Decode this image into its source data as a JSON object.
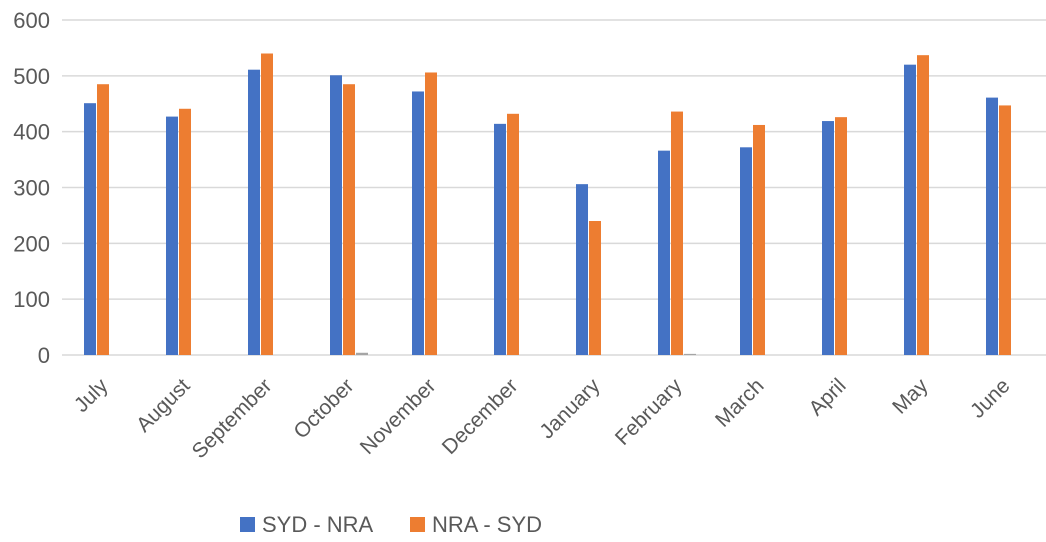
{
  "chart_data": {
    "type": "bar",
    "title": "",
    "xlabel": "",
    "ylabel": "",
    "ylim": [
      0,
      600
    ],
    "yticks": [
      0,
      100,
      200,
      300,
      400,
      500,
      600
    ],
    "grid": true,
    "legend_position": "bottom",
    "categories": [
      "July",
      "August",
      "September",
      "October",
      "November",
      "December",
      "January",
      "February",
      "March",
      "April",
      "May",
      "June"
    ],
    "series": [
      {
        "name": "SYD - NRA",
        "color": "#4472C4",
        "values": [
          451,
          427,
          511,
          501,
          472,
          414,
          306,
          366,
          372,
          419,
          520,
          461
        ]
      },
      {
        "name": "NRA - SYD",
        "color": "#ED7D31",
        "values": [
          485,
          441,
          540,
          485,
          506,
          432,
          240,
          436,
          412,
          426,
          537,
          447
        ]
      },
      {
        "name": "",
        "color": "#A5A5A5",
        "values": [
          0,
          0,
          0,
          4,
          0,
          0,
          0,
          2,
          0,
          0,
          0,
          0
        ]
      }
    ]
  }
}
